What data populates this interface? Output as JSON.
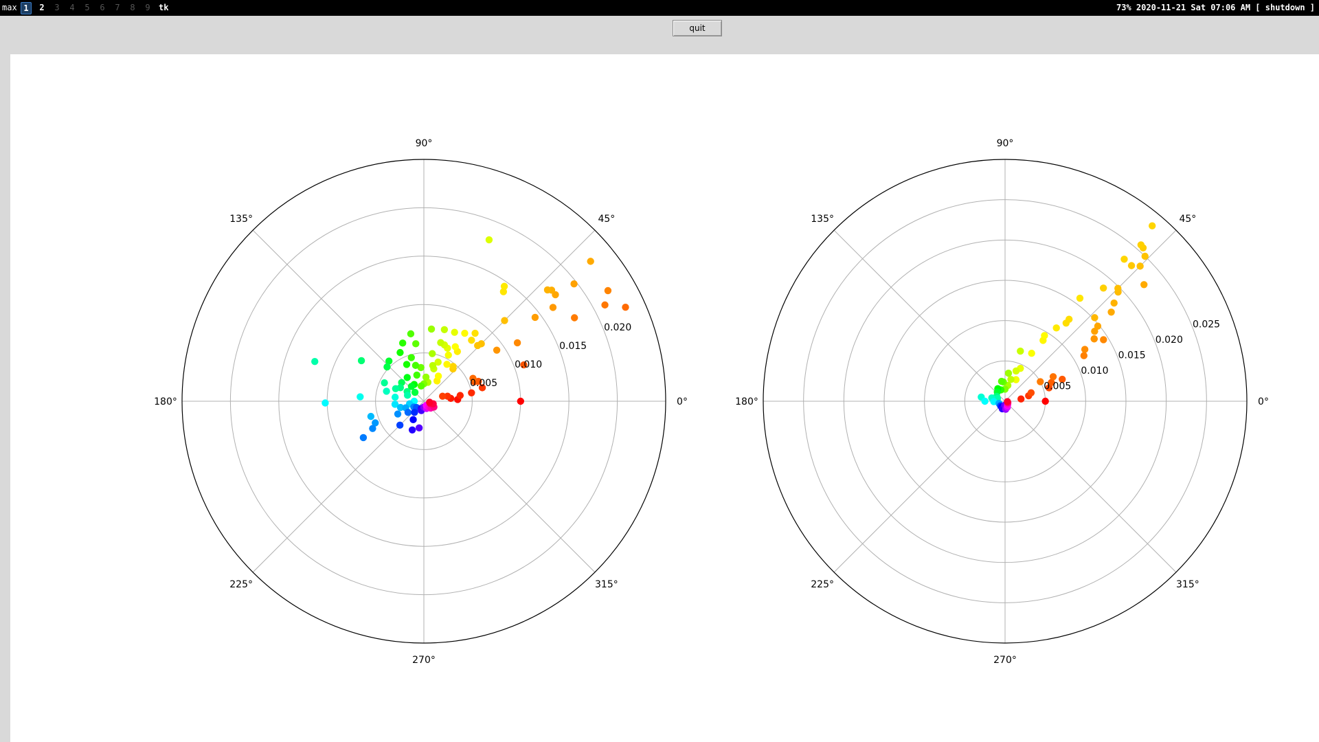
{
  "topbar": {
    "layout_label": "max",
    "workspaces": [
      {
        "label": "1",
        "state": "active"
      },
      {
        "label": "2",
        "state": "occupied"
      },
      {
        "label": "3",
        "state": "empty"
      },
      {
        "label": "4",
        "state": "empty"
      },
      {
        "label": "5",
        "state": "empty"
      },
      {
        "label": "6",
        "state": "empty"
      },
      {
        "label": "7",
        "state": "empty"
      },
      {
        "label": "8",
        "state": "empty"
      },
      {
        "label": "9",
        "state": "empty"
      }
    ],
    "window_title": "tk",
    "status_text": "73% 2020-11-21 Sat 07:06 AM [ shutdown ]"
  },
  "toolbar": {
    "quit_label": "quit"
  },
  "colors": {
    "background": "#ffffff",
    "grid": "#b0b0b0",
    "outline": "#000000",
    "colormap": "hsv"
  },
  "chart_data": [
    {
      "type": "scatter",
      "projection": "polar",
      "theta_unit": "degrees",
      "theta_ticks": [
        "0°",
        "45°",
        "90°",
        "135°",
        "180°",
        "225°",
        "270°",
        "315°"
      ],
      "rmax": 0.025,
      "r_ticks": [
        0.005,
        0.01,
        0.015,
        0.02,
        0.025
      ],
      "r_tick_labels": [
        "0.005",
        "0.010",
        "0.015",
        "0.020",
        ""
      ],
      "r_label_angle_deg": 22.5,
      "color_by": "theta",
      "grid": true,
      "points": [
        [
          0,
          0.01
        ],
        [
          3,
          0.0035
        ],
        [
          6,
          0.0028
        ],
        [
          9,
          0.0038
        ],
        [
          10,
          0.005
        ],
        [
          12,
          0.0025
        ],
        [
          13,
          0.0062
        ],
        [
          15,
          0.002
        ],
        [
          20,
          0.011
        ],
        [
          20,
          0.006
        ],
        [
          21,
          0.0056
        ],
        [
          25,
          0.0056
        ],
        [
          25,
          0.023
        ],
        [
          28,
          0.0212
        ],
        [
          29,
          0.0178
        ],
        [
          31,
          0.0222
        ],
        [
          32,
          0.0114
        ],
        [
          35,
          0.0092
        ],
        [
          36,
          0.0165
        ],
        [
          37,
          0.0144
        ],
        [
          38,
          0.0197
        ],
        [
          39,
          0.0175
        ],
        [
          40,
          0.0225
        ],
        [
          41,
          0.0175
        ],
        [
          42,
          0.0172
        ],
        [
          45,
          0.0084
        ],
        [
          45,
          0.0118
        ],
        [
          46,
          0.008
        ],
        [
          48,
          0.0045
        ],
        [
          50,
          0.0047
        ],
        [
          52,
          0.008
        ],
        [
          53,
          0.0088
        ],
        [
          54,
          0.014
        ],
        [
          55,
          0.0145
        ],
        [
          56,
          0.0062
        ],
        [
          57,
          0.0025
        ],
        [
          58,
          0.0045
        ],
        [
          59,
          0.0082
        ],
        [
          60,
          0.0065
        ],
        [
          60,
          0.003
        ],
        [
          62,
          0.0054
        ],
        [
          66,
          0.006
        ],
        [
          66,
          0.0078
        ],
        [
          68,
          0.018
        ],
        [
          70,
          0.0062
        ],
        [
          70,
          0.0043
        ],
        [
          73,
          0.0035
        ],
        [
          74,
          0.0063
        ],
        [
          74,
          0.0077
        ],
        [
          76,
          0.0038
        ],
        [
          78,
          0.002
        ],
        [
          80,
          0.005
        ],
        [
          84,
          0.0075
        ],
        [
          85,
          0.0025
        ],
        [
          90,
          0.0018
        ],
        [
          95,
          0.0035
        ],
        [
          98,
          0.006
        ],
        [
          100,
          0.0016
        ],
        [
          101,
          0.0071
        ],
        [
          103,
          0.0038
        ],
        [
          105,
          0.0028
        ],
        [
          106,
          0.0047
        ],
        [
          110,
          0.0064
        ],
        [
          115,
          0.0042
        ],
        [
          116,
          0.0056
        ],
        [
          120,
          0.002
        ],
        [
          125,
          0.003
        ],
        [
          130,
          0.002
        ],
        [
          131,
          0.0055
        ],
        [
          135,
          0.0013
        ],
        [
          137,
          0.0052
        ],
        [
          140,
          0.003
        ],
        [
          147,
          0.0077
        ],
        [
          150,
          0.002
        ],
        [
          150,
          0.0028
        ],
        [
          155,
          0.0045
        ],
        [
          156,
          0.0032
        ],
        [
          160,
          0.0018
        ],
        [
          160,
          0.012
        ],
        [
          165,
          0.004
        ],
        [
          172,
          0.003
        ],
        [
          176,
          0.0066
        ],
        [
          180,
          0.001
        ],
        [
          181,
          0.0102
        ],
        [
          186,
          0.003
        ],
        [
          190,
          0.0015
        ],
        [
          195,
          0.0025
        ],
        [
          196,
          0.0057
        ],
        [
          200,
          0.002
        ],
        [
          204,
          0.0055
        ],
        [
          206,
          0.003
        ],
        [
          208,
          0.006
        ],
        [
          210,
          0.0012
        ],
        [
          211,
          0.0073
        ],
        [
          215,
          0.002
        ],
        [
          220,
          0.001
        ],
        [
          225,
          0.0035
        ],
        [
          230,
          0.0015
        ],
        [
          240,
          0.0022
        ],
        [
          248,
          0.0032
        ],
        [
          250,
          0.0008
        ],
        [
          255,
          0.001
        ],
        [
          260,
          0.0028
        ],
        [
          270,
          0.0006
        ],
        [
          290,
          0.0008
        ],
        [
          300,
          0.0005
        ],
        [
          310,
          0.0008
        ],
        [
          315,
          0.001
        ],
        [
          320,
          0.001
        ],
        [
          330,
          0.0012
        ],
        [
          340,
          0.0007
        ],
        [
          345,
          0.001
        ],
        [
          350,
          0.0006
        ]
      ]
    },
    {
      "type": "scatter",
      "projection": "polar",
      "theta_unit": "degrees",
      "theta_ticks": [
        "0°",
        "45°",
        "90°",
        "135°",
        "180°",
        "225°",
        "270°",
        "315°"
      ],
      "rmax": 0.03,
      "r_ticks": [
        0.005,
        0.01,
        0.015,
        0.02,
        0.025,
        0.03
      ],
      "r_tick_labels": [
        "0.005",
        "0.010",
        "0.015",
        "0.020",
        "0.025",
        ""
      ],
      "r_label_angle_deg": 22.5,
      "color_by": "theta",
      "grid": true,
      "points": [
        [
          0,
          0.005
        ],
        [
          8,
          0.002
        ],
        [
          13,
          0.003
        ],
        [
          17,
          0.0057
        ],
        [
          18,
          0.0034
        ],
        [
          21,
          0.0076
        ],
        [
          22,
          0.0062
        ],
        [
          27,
          0.0067
        ],
        [
          29,
          0.005
        ],
        [
          30,
          0.0113
        ],
        [
          32,
          0.0144
        ],
        [
          33,
          0.0118
        ],
        [
          35,
          0.0135
        ],
        [
          35,
          0.0135
        ],
        [
          38,
          0.0141
        ],
        [
          39,
          0.0148
        ],
        [
          40,
          0.0172
        ],
        [
          40,
          0.0225
        ],
        [
          42,
          0.0182
        ],
        [
          43,
          0.0152
        ],
        [
          44,
          0.0195
        ],
        [
          45,
          0.0198
        ],
        [
          45,
          0.0237
        ],
        [
          46,
          0.025
        ],
        [
          47,
          0.023
        ],
        [
          48,
          0.0256
        ],
        [
          49,
          0.0257
        ],
        [
          49,
          0.0186
        ],
        [
          50,
          0.023
        ],
        [
          50,
          0.0284
        ],
        [
          52,
          0.0123
        ],
        [
          52,
          0.0129
        ],
        [
          54,
          0.0158
        ],
        [
          55,
          0.0111
        ],
        [
          58,
          0.0089
        ],
        [
          59,
          0.0095
        ],
        [
          61,
          0.0068
        ],
        [
          63,
          0.003
        ],
        [
          65,
          0.0045
        ],
        [
          70,
          0.004
        ],
        [
          73,
          0.0065
        ],
        [
          75,
          0.0028
        ],
        [
          80,
          0.002
        ],
        [
          83,
          0.0035
        ],
        [
          90,
          0.0015
        ],
        [
          95,
          0.0024
        ],
        [
          100,
          0.0025
        ],
        [
          110,
          0.0015
        ],
        [
          120,
          0.0018
        ],
        [
          130,
          0.0015
        ],
        [
          150,
          0.0012
        ],
        [
          160,
          0.001
        ],
        [
          166,
          0.0017
        ],
        [
          170,
          0.003
        ],
        [
          180,
          0.0025
        ],
        [
          182,
          0.0014
        ],
        [
          200,
          0.0008
        ],
        [
          225,
          0.0008
        ],
        [
          240,
          0.0008
        ],
        [
          250,
          0.001
        ],
        [
          265,
          0.0005
        ],
        [
          275,
          0.001
        ],
        [
          290,
          0.0008
        ],
        [
          300,
          0.0006
        ],
        [
          310,
          0.0005
        ],
        [
          330,
          0.0004
        ],
        [
          350,
          0.0003
        ]
      ]
    }
  ]
}
